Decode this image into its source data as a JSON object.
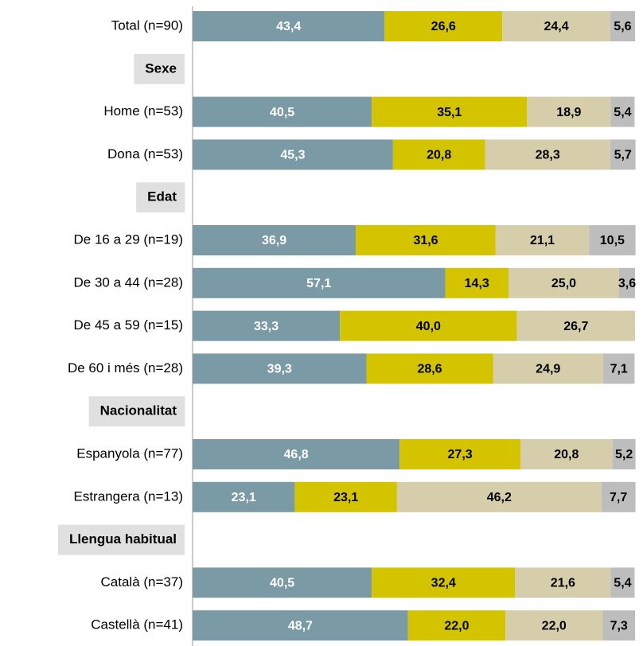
{
  "chart_data": {
    "type": "stacked-bar-horizontal",
    "categories": [
      "Total (n=90)",
      "Sexe",
      "Home (n=53)",
      "Dona (n=53)",
      "Edat",
      "De 16 a 29 (n=19)",
      "De 30 a 44 (n=28)",
      "De 45 a 59 (n=15)",
      "De 60 i més (n=28)",
      "Nacionalitat",
      "Espanyola (n=77)",
      "Estrangera (n=13)",
      "Llengua habitual",
      "Català (n=37)",
      "Castellà (n=41)"
    ],
    "xlim": [
      0,
      100
    ],
    "series": [
      {
        "color": "#7a9aa5",
        "label_color": "#ffffff",
        "values": [
          43.4,
          null,
          40.5,
          45.3,
          null,
          36.9,
          57.1,
          33.3,
          39.3,
          null,
          46.8,
          23.1,
          null,
          40.5,
          48.7
        ],
        "value_labels": [
          "43,4",
          null,
          "40,5",
          "45,3",
          null,
          "36,9",
          "57,1",
          "33,3",
          "39,3",
          null,
          "46,8",
          "23,1",
          null,
          "40,5",
          "48,7"
        ]
      },
      {
        "color": "#d4c400",
        "label_color": "#000000",
        "values": [
          26.6,
          null,
          35.1,
          20.8,
          null,
          31.6,
          14.3,
          40.0,
          28.6,
          null,
          27.3,
          23.1,
          null,
          32.4,
          22.0
        ],
        "value_labels": [
          "26,6",
          null,
          "35,1",
          "20,8",
          null,
          "31,6",
          "14,3",
          "40,0",
          "28,6",
          null,
          "27,3",
          "23,1",
          null,
          "32,4",
          "22,0"
        ]
      },
      {
        "color": "#d6ceaa",
        "label_color": "#000000",
        "values": [
          24.4,
          null,
          18.9,
          28.3,
          null,
          21.1,
          25.0,
          26.7,
          24.9,
          null,
          20.8,
          46.2,
          null,
          21.6,
          22.0
        ],
        "value_labels": [
          "24,4",
          null,
          "18,9",
          "28,3",
          null,
          "21,1",
          "25,0",
          "26,7",
          "24,9",
          null,
          "20,8",
          "46,2",
          null,
          "21,6",
          "22,0"
        ]
      },
      {
        "color": "#bdbdbd",
        "label_color": "#000000",
        "values": [
          5.6,
          null,
          5.4,
          5.7,
          null,
          10.5,
          3.6,
          null,
          7.1,
          null,
          5.2,
          7.7,
          null,
          5.4,
          7.3
        ],
        "value_labels": [
          "5,6",
          null,
          "5,4",
          "5,7",
          null,
          "10,5",
          "3,6",
          null,
          "7,1",
          null,
          "5,2",
          "7,7",
          null,
          "5,4",
          "7,3"
        ]
      }
    ]
  }
}
